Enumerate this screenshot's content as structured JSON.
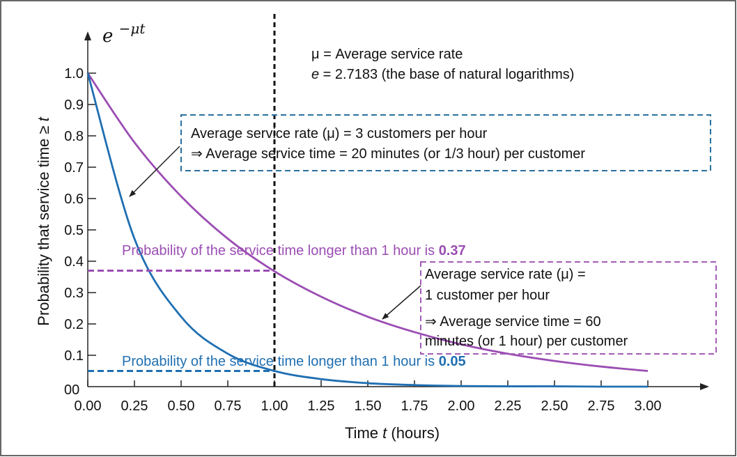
{
  "chart_data": {
    "type": "line",
    "title_formula": "e",
    "title_exponent": "−μt",
    "xlabel_prefix": "Time ",
    "xlabel_var": "t",
    "xlabel_suffix": " (hours)",
    "ylabel_text": "Probability that service time ≥ ",
    "ylabel_var": "t",
    "xlim": [
      0,
      3
    ],
    "ylim": [
      0,
      1
    ],
    "x_ticks": [
      0,
      0.25,
      0.5,
      0.75,
      1.0,
      1.25,
      1.5,
      1.75,
      2.0,
      2.25,
      2.5,
      2.75,
      3.0
    ],
    "x_tick_labels": [
      "0.00",
      "0.25",
      "0.50",
      "0.75",
      "1.00",
      "1.25",
      "1.50",
      "1.75",
      "2.00",
      "2.25",
      "2.50",
      "2.75",
      "3.00"
    ],
    "y_ticks": [
      0.1,
      0.2,
      0.3,
      0.4,
      0.5,
      0.6,
      0.7,
      0.8,
      0.9,
      1.0
    ],
    "y_tick_labels": [
      "0.1",
      "0.2",
      "0.3",
      "0.4",
      "0.5",
      "0.6",
      "0.7",
      "0.8",
      "0.9",
      "1.0"
    ],
    "y_origin_label": "00",
    "series": [
      {
        "mu": 3,
        "color": "#1f6fb2",
        "x": [
          0,
          0.25,
          0.5,
          0.75,
          1.0,
          1.25,
          1.5,
          1.75,
          2.0,
          2.25,
          2.5,
          2.75,
          3.0
        ],
        "values": [
          1.0,
          0.472,
          0.223,
          0.105,
          0.05,
          0.024,
          0.011,
          0.005,
          0.002,
          0.001,
          0.001,
          0.0,
          0.0
        ]
      },
      {
        "mu": 1,
        "color": "#9b4db3",
        "x": [
          0,
          0.25,
          0.5,
          0.75,
          1.0,
          1.25,
          1.5,
          1.75,
          2.0,
          2.25,
          2.5,
          2.75,
          3.0
        ],
        "values": [
          1.0,
          0.779,
          0.607,
          0.472,
          0.368,
          0.287,
          0.223,
          0.174,
          0.135,
          0.105,
          0.082,
          0.064,
          0.05
        ]
      }
    ],
    "legend_line_1": "μ = Average service rate",
    "legend_line_2_var": "e",
    "legend_line_2_rest": " = 2.7183 (the base of natural logarithms)",
    "box_mu3_line1": "Average service rate (μ) = 3 customers per hour",
    "box_mu3_line2": "⇒ Average service time = 20 minutes (or 1/3 hour) per customer",
    "box_mu1_line1": "Average service rate (μ) =",
    "box_mu1_line2": "1 customer per hour",
    "box_mu1_line3": "⇒ Average service time = 60",
    "box_mu1_line4": "minutes (or 1 hour) per customer",
    "note_purple_text": "Probability of the service time longer than 1 hour is ",
    "note_purple_value": "0.37",
    "note_blue_text": "Probability of the service time longer than 1 hour is ",
    "note_blue_value": "0.05",
    "ref_x": 1.0,
    "ref_y_purple": 0.37,
    "ref_y_blue": 0.05,
    "colors": {
      "blue": "#1f6fb2",
      "purple": "#9b4db3",
      "box_blue": "#2a6f9e",
      "box_purple": "#a35bb5",
      "axis": "#222222"
    }
  }
}
